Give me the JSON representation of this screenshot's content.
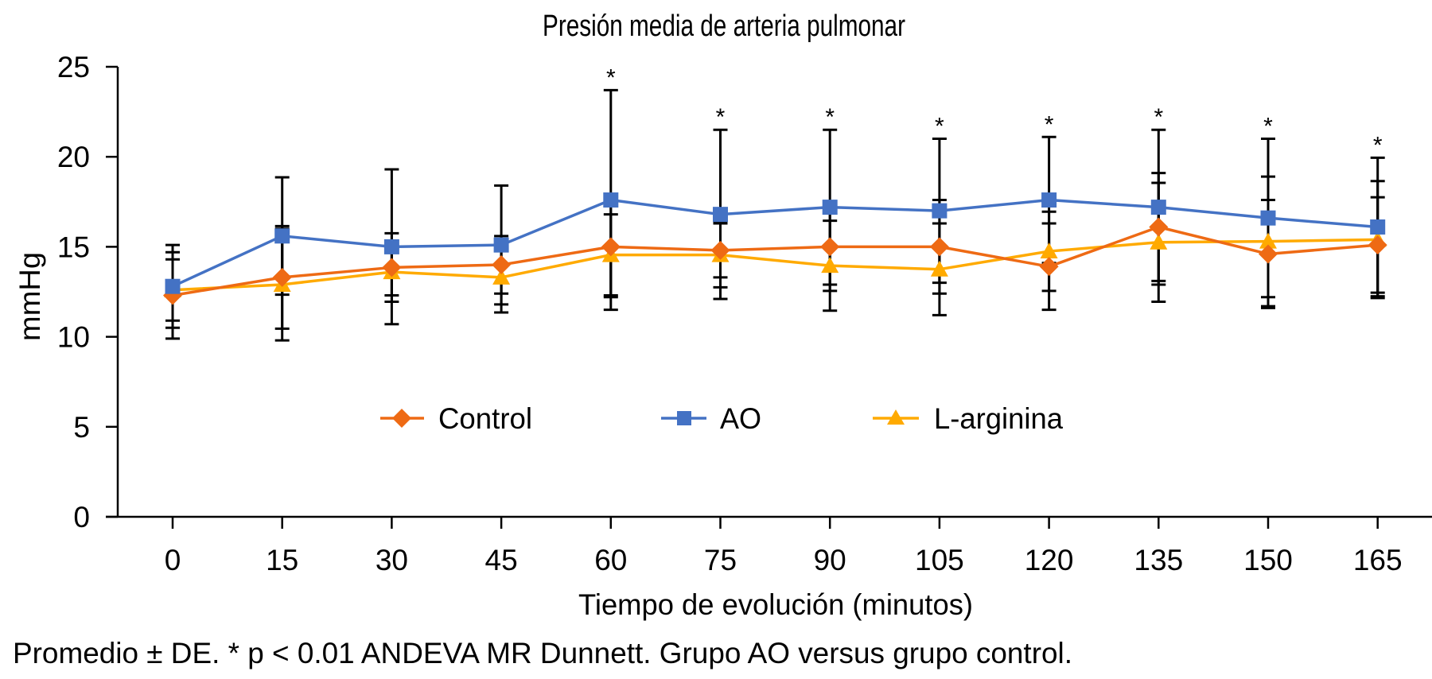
{
  "chart_data": {
    "type": "line",
    "title": "Presión media de arteria pulmonar",
    "xlabel": "Tiempo de evolución (minutos)",
    "ylabel": "mmHg",
    "x": [
      0,
      15,
      30,
      45,
      60,
      75,
      90,
      105,
      120,
      135,
      150,
      165
    ],
    "x_tick_labels": [
      "0",
      "15",
      "30",
      "45",
      "60",
      "75",
      "90",
      "105",
      "120",
      "135",
      "150",
      "165"
    ],
    "ylim": [
      0,
      25
    ],
    "y_ticks": [
      0,
      5,
      10,
      15,
      20,
      25
    ],
    "y_tick_labels": [
      "0",
      "5",
      "10",
      "15",
      "20",
      "25"
    ],
    "grid": false,
    "legend_position": "center (inside plot, lower-middle)",
    "series": [
      {
        "name": "Control",
        "color": "#EE6A14",
        "marker": "diamond",
        "values": [
          12.3,
          13.3,
          13.85,
          14.0,
          15.0,
          14.8,
          15.0,
          15.0,
          13.9,
          16.1,
          14.6,
          15.1
        ],
        "sd": [
          2.4,
          2.85,
          1.9,
          1.6,
          2.8,
          1.5,
          2.45,
          2.6,
          2.4,
          3.0,
          3.0,
          2.65
        ]
      },
      {
        "name": "AO",
        "color": "#4472C4",
        "marker": "square",
        "values": [
          12.8,
          15.6,
          15.0,
          15.1,
          17.6,
          16.8,
          17.2,
          17.0,
          17.6,
          17.2,
          16.6,
          16.1
        ],
        "sd": [
          2.3,
          3.26,
          4.3,
          3.3,
          6.1,
          4.7,
          4.3,
          4.0,
          3.5,
          4.3,
          4.4,
          3.85
        ]
      },
      {
        "name": "L-arginina",
        "color": "#FFAA00",
        "marker": "triangle",
        "values": [
          12.6,
          12.9,
          13.6,
          13.3,
          14.55,
          14.55,
          13.95,
          13.75,
          14.75,
          15.25,
          15.3,
          15.4
        ],
        "sd": [
          1.7,
          3.1,
          1.3,
          1.95,
          2.25,
          1.8,
          2.5,
          2.55,
          2.2,
          3.3,
          3.6,
          3.25
        ]
      }
    ],
    "significance_marker": "*",
    "significant_x": [
      60,
      75,
      90,
      105,
      120,
      135,
      150,
      165
    ],
    "footnote": "Promedio ± DE. * p < 0.01 ANDEVA MR Dunnett. Grupo AO versus grupo control."
  }
}
